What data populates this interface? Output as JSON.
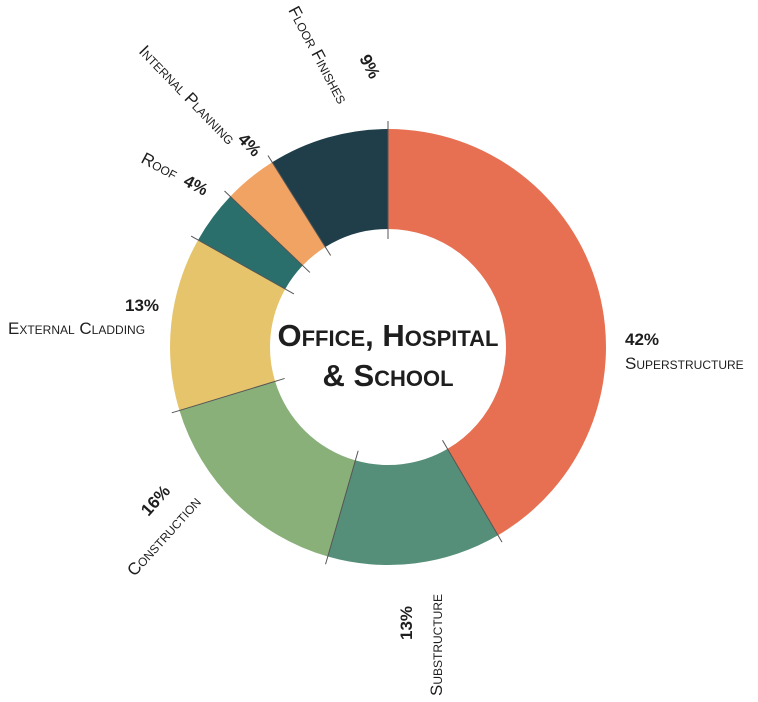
{
  "chart_data": {
    "type": "pie",
    "title_lines": [
      "Office, Hospital",
      "& School"
    ],
    "slices": [
      {
        "label": "Superstructure",
        "value": 42,
        "value_label": "42%",
        "color": "#e77052"
      },
      {
        "label": "Substructure",
        "value": 13,
        "value_label": "13%",
        "color": "#558f79"
      },
      {
        "label": "Construction",
        "value": 16,
        "value_label": "16%",
        "color": "#8ab07a"
      },
      {
        "label": "External Cladding",
        "value": 13,
        "value_label": "13%",
        "color": "#e6c46c"
      },
      {
        "label": "Roof",
        "value": 4,
        "value_label": "4%",
        "color": "#2b6f6d"
      },
      {
        "label": "Internal Planning",
        "value": 4,
        "value_label": "4%",
        "color": "#f0a363"
      },
      {
        "label": "Floor Finishes",
        "value": 9,
        "value_label": "9%",
        "color": "#1f3e4a"
      }
    ]
  }
}
